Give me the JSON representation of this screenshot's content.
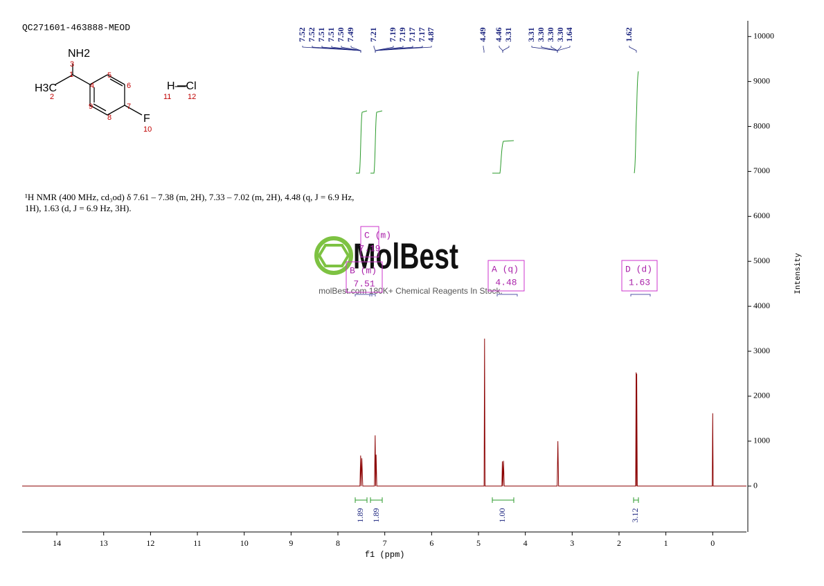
{
  "sample": "QC271601-463888-MEOD",
  "structure": {
    "amine": "NH2",
    "methyl": "H3C",
    "fluorine": "F",
    "acid": "H—Cl",
    "numbers": [
      "1",
      "2",
      "3",
      "4",
      "5",
      "6",
      "7",
      "8",
      "9",
      "10",
      "11",
      "12"
    ]
  },
  "description": [
    "¹H NMR (400 MHz, cd₃od) δ 7.61 – 7.38 (m, 2H), 7.33 – 7.02 (m, 2H), 4.48 (q, J = 6.9 Hz,",
    "1H), 1.63 (d, J = 6.9 Hz, 3H)."
  ],
  "peak_labels": [
    "7.52",
    "7.52",
    "7.51",
    "7.51",
    "7.50",
    "7.49",
    "7.21",
    "7.19",
    "7.19",
    "7.17",
    "7.17",
    "4.87",
    "4.49",
    "4.46",
    "3.31",
    "3.31",
    "3.30",
    "3.30",
    "3.30",
    "1.64",
    "1.62"
  ],
  "multiplets": [
    {
      "label": "C (m)",
      "shift": "7.19"
    },
    {
      "label": "B (m)",
      "shift": "7.51"
    },
    {
      "label": "A (q)",
      "shift": "4.48"
    },
    {
      "label": "D (d)",
      "shift": "1.63"
    }
  ],
  "integrals": [
    "1.89",
    "1.89",
    "1.00",
    "3.12"
  ],
  "watermark": {
    "brand": "MolBest",
    "tagline": "molBest.com 180K+ Chemical Reagents In Stock."
  },
  "chart_data": {
    "type": "line",
    "xlabel": "f1 (ppm)",
    "ylabel": "Intensity",
    "xlim": [
      14.74,
      -0.72
    ],
    "xticks": [
      14,
      13,
      12,
      11,
      10,
      9,
      8,
      7,
      6,
      5,
      4,
      3,
      2,
      1,
      0
    ],
    "ylim": [
      -1020,
      10350
    ],
    "yticks": [
      0,
      1000,
      2000,
      3000,
      4000,
      5000,
      6000,
      7000,
      8000,
      9000,
      10000
    ],
    "series": [
      {
        "color": "#8b0000",
        "x": [
          14.74,
          7.53,
          7.515,
          7.505,
          7.49,
          7.47,
          7.22,
          7.205,
          7.195,
          7.185,
          7.17,
          4.88,
          4.87,
          4.86,
          4.5,
          4.49,
          4.48,
          4.465,
          4.45,
          3.32,
          3.305,
          3.29,
          1.645,
          1.635,
          1.628,
          1.622,
          1.61,
          0.01,
          0,
          -0.01,
          -0.72
        ],
        "values": [
          0,
          0,
          680,
          0,
          620,
          0,
          0,
          1130,
          0,
          700,
          0,
          0,
          3280,
          0,
          0,
          550,
          0,
          560,
          0,
          0,
          1000,
          0,
          0,
          2530,
          0,
          2500,
          0,
          0,
          1620,
          0,
          0
        ]
      }
    ]
  }
}
